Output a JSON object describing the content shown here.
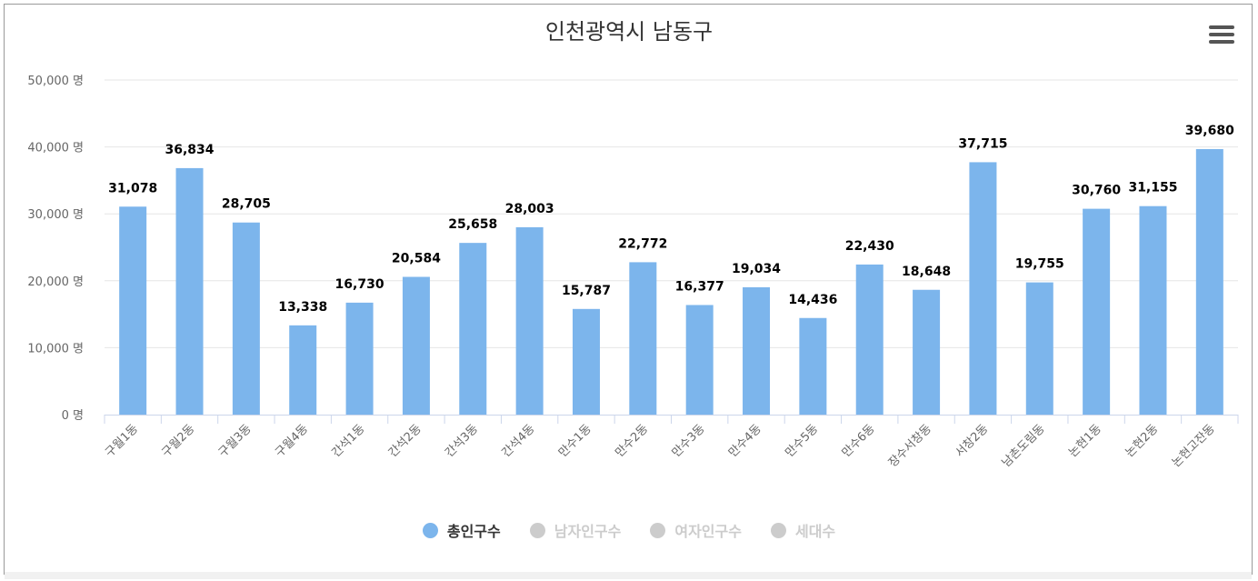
{
  "chart_data": {
    "type": "bar",
    "title": "인천광역시 남동구",
    "categories": [
      "구월1동",
      "구월2동",
      "구월3동",
      "구월4동",
      "간석1동",
      "간석2동",
      "간석3동",
      "간석4동",
      "만수1동",
      "만수2동",
      "만수3동",
      "만수4동",
      "만수5동",
      "만수6동",
      "장수서창동",
      "서창2동",
      "남촌도림동",
      "논현1동",
      "논현2동",
      "논현고잔동"
    ],
    "series": [
      {
        "name": "총인구수",
        "values": [
          31078,
          36834,
          28705,
          13338,
          16730,
          20584,
          25658,
          28003,
          15787,
          22772,
          16377,
          19034,
          14436,
          22430,
          18648,
          37715,
          19755,
          30760,
          31155,
          39680
        ]
      }
    ],
    "data_labels": [
      "31,078",
      "36,834",
      "28,705",
      "13,338",
      "16,730",
      "20,584",
      "25,658",
      "28,003",
      "15,787",
      "22,772",
      "16,377",
      "19,034",
      "14,436",
      "22,430",
      "18,648",
      "37,715",
      "19,755",
      "30,760",
      "31,155",
      "39,680"
    ],
    "y_ticks": [
      0,
      10000,
      20000,
      30000,
      40000,
      50000
    ],
    "y_tick_labels": [
      "0 명",
      "10,000 명",
      "20,000 명",
      "30,000 명",
      "40,000 명",
      "50,000 명"
    ],
    "ylim": [
      0,
      50000
    ],
    "grid": true,
    "legend_position": "bottom-center",
    "bar_color": "#7cb5ec"
  },
  "legend": [
    {
      "label": "총인구수",
      "active": true,
      "color": "#7cb5ec"
    },
    {
      "label": "남자인구수",
      "active": false,
      "color": "#cccccc"
    },
    {
      "label": "여자인구수",
      "active": false,
      "color": "#cccccc"
    },
    {
      "label": "세대수",
      "active": false,
      "color": "#cccccc"
    }
  ],
  "icons": {
    "menu": "hamburger-menu-icon"
  }
}
